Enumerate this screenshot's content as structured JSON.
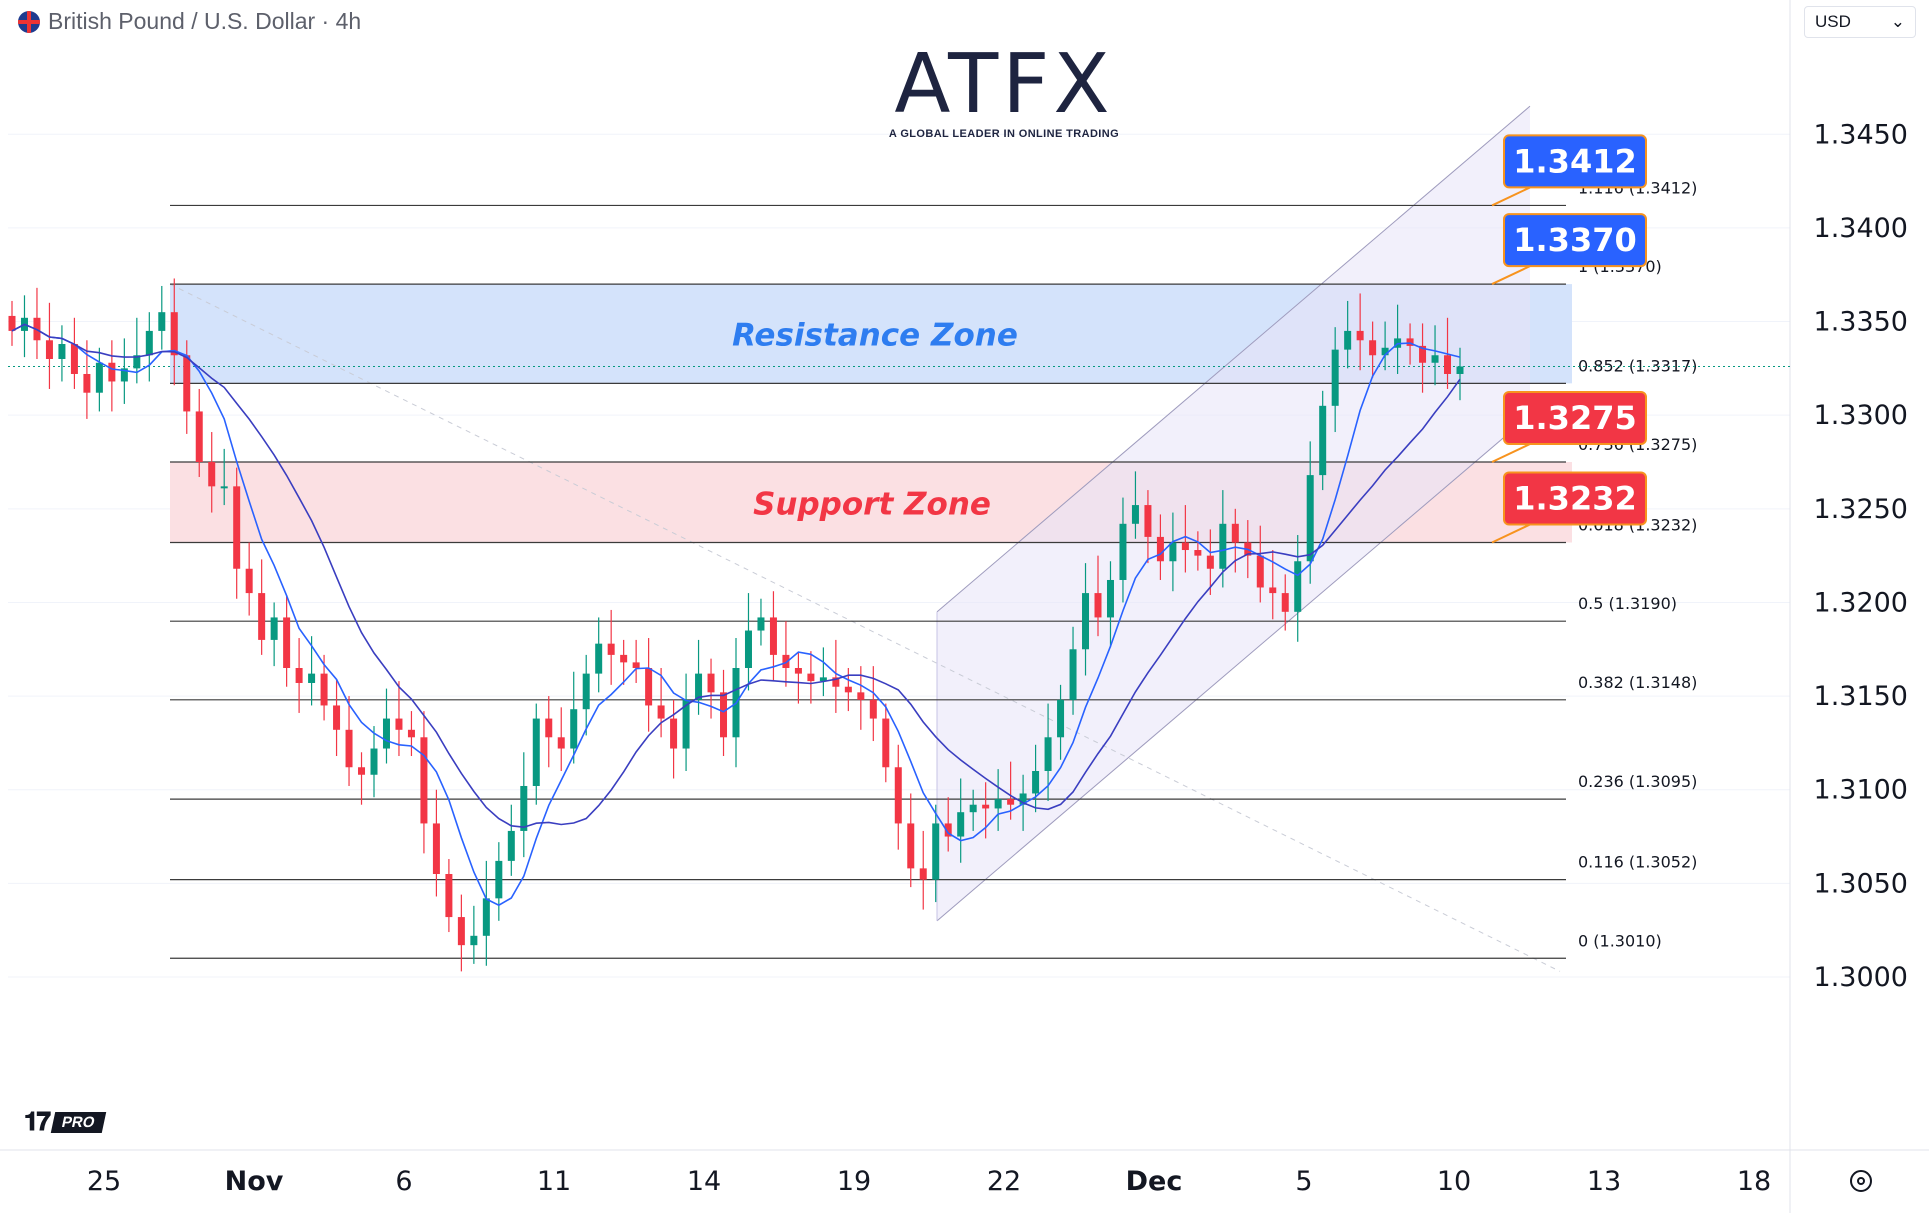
{
  "header": {
    "symbol": "British Pound / U.S. Dollar",
    "separator": " / ",
    "interval": "4h",
    "currency": "USD",
    "currency_chevron_icon": "chevron-down-icon"
  },
  "logo": {
    "brand": "ATFX",
    "tagline": "A GLOBAL LEADER IN ONLINE TRADING"
  },
  "watermark": {
    "label": "PRO"
  },
  "colors": {
    "up": "#089981",
    "down": "#f23645",
    "ma_fast": "#2962ff",
    "ma_slow": "#3a3ec0",
    "resistance_fill": "#d4e3fb",
    "support_fill": "#fbe0e3",
    "channel_fill": "#e8e4f7",
    "resistance_text": "#2e7df0",
    "support_text": "#f23645",
    "badge_blue": "#2962ff",
    "badge_red": "#f23645"
  },
  "chart_data": {
    "type": "candlestick",
    "symbol": "British Pound / U.S. Dollar",
    "interval": "4h",
    "y_axis": {
      "min": 1.2945,
      "max": 1.3495,
      "ticks": [
        "1.3450",
        "1.3400",
        "1.3350",
        "1.3300",
        "1.3250",
        "1.3200",
        "1.3150",
        "1.3100",
        "1.3050",
        "1.3000"
      ],
      "tick_values": [
        1.345,
        1.34,
        1.335,
        1.33,
        1.325,
        1.32,
        1.315,
        1.31,
        1.305,
        1.3
      ]
    },
    "x_axis": {
      "labels": [
        "25",
        "Nov",
        "6",
        "11",
        "14",
        "19",
        "22",
        "Dec",
        "5",
        "10",
        "13",
        "18"
      ],
      "bold_labels": [
        "Nov",
        "Dec"
      ]
    },
    "fibonacci": [
      {
        "ratio": "1.116",
        "label": "1.116 (1.3412)",
        "price": 1.3412
      },
      {
        "ratio": "1",
        "label": "1 (1.3370)",
        "price": 1.337
      },
      {
        "ratio": "0.852",
        "label": "0.852 (1.3317)",
        "price": 1.3317
      },
      {
        "ratio": "0.736",
        "label": "0.736 (1.3275)",
        "price": 1.3275
      },
      {
        "ratio": "0.618",
        "label": "0.618 (1.3232)",
        "price": 1.3232
      },
      {
        "ratio": "0.5",
        "label": "0.5 (1.3190)",
        "price": 1.319
      },
      {
        "ratio": "0.382",
        "label": "0.382 (1.3148)",
        "price": 1.3148
      },
      {
        "ratio": "0.236",
        "label": "0.236 (1.3095)",
        "price": 1.3095
      },
      {
        "ratio": "0.116",
        "label": "0.116 (1.3052)",
        "price": 1.3052
      },
      {
        "ratio": "0",
        "label": "0 (1.3010)",
        "price": 1.301
      }
    ],
    "zones": [
      {
        "name": "Resistance Zone",
        "top": 1.337,
        "bottom": 1.3317
      },
      {
        "name": "Support Zone",
        "top": 1.3275,
        "bottom": 1.3232
      }
    ],
    "badges": [
      {
        "text": "1.3412",
        "price": 1.3412,
        "kind": "resistance"
      },
      {
        "text": "1.3370",
        "price": 1.337,
        "kind": "resistance"
      },
      {
        "text": "1.3275",
        "price": 1.3275,
        "kind": "support"
      },
      {
        "text": "1.3232",
        "price": 1.3232,
        "kind": "support"
      }
    ],
    "current_price": 1.3326,
    "channel": {
      "upper_start": 1.3195,
      "upper_end": 1.3465,
      "lower_start": 1.303,
      "lower_end": 1.33
    },
    "series": [
      {
        "name": "close",
        "values": [
          1.3345,
          1.3352,
          1.334,
          1.333,
          1.3338,
          1.3322,
          1.3312,
          1.3328,
          1.3318,
          1.3325,
          1.3332,
          1.3345,
          1.3355,
          1.3332,
          1.3302,
          1.3275,
          1.3262,
          1.3262,
          1.3218,
          1.3205,
          1.318,
          1.3192,
          1.3165,
          1.3157,
          1.3162,
          1.3145,
          1.3132,
          1.3112,
          1.3108,
          1.3122,
          1.3138,
          1.3132,
          1.3128,
          1.3082,
          1.3055,
          1.3032,
          1.3017,
          1.3022,
          1.3042,
          1.3062,
          1.3078,
          1.3102,
          1.3138,
          1.3128,
          1.3122,
          1.3143,
          1.3162,
          1.3178,
          1.3172,
          1.3168,
          1.3165,
          1.3145,
          1.3138,
          1.3122,
          1.3148,
          1.3162,
          1.3152,
          1.3128,
          1.3165,
          1.3185,
          1.3192,
          1.3172,
          1.3165,
          1.3162,
          1.3158,
          1.316,
          1.3155,
          1.3152,
          1.3148,
          1.3138,
          1.3112,
          1.3082,
          1.3058,
          1.3052,
          1.3082,
          1.3075,
          1.3088,
          1.3092,
          1.309,
          1.3095,
          1.3092,
          1.3098,
          1.311,
          1.3128,
          1.3148,
          1.3175,
          1.3205,
          1.3192,
          1.3212,
          1.3242,
          1.3252,
          1.3235,
          1.3222,
          1.3232,
          1.3228,
          1.3225,
          1.3218,
          1.3242,
          1.3232,
          1.3225,
          1.3208,
          1.3205,
          1.3195,
          1.3222,
          1.3268,
          1.3305,
          1.3335,
          1.3345,
          1.334,
          1.3332,
          1.3336,
          1.3341,
          1.3337,
          1.3328,
          1.3332,
          1.3322,
          1.3326
        ]
      }
    ]
  }
}
